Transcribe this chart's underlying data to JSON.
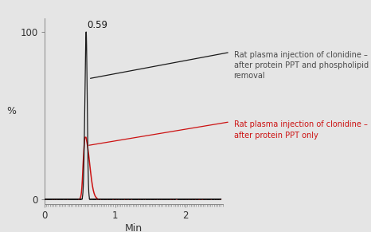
{
  "background_color": "#e5e5e5",
  "plot_bg_color": "#e5e5e5",
  "xlabel": "Min",
  "ylabel": "%",
  "xlim": [
    0,
    2.5
  ],
  "ylim": [
    -3,
    108
  ],
  "yticks": [
    0,
    100
  ],
  "xtick_major": [
    0,
    1.0,
    2.0
  ],
  "xtick_major_labels": [
    "0",
    "1",
    "2"
  ],
  "peak_x": 0.59,
  "peak_label": "0.59",
  "black_line_color": "#1a1a1a",
  "red_line_color": "#cc1111",
  "annotation_black_color": "#4a4a4a",
  "annotation_red_color": "#cc1111",
  "label_black": "Rat plasma injection of clonidine –\nafter protein PPT and phospholipid\nremoval",
  "label_red": "Rat plasma injection of clonidine –\nafter protein PPT only",
  "figsize": [
    4.66,
    2.91
  ],
  "dpi": 100
}
